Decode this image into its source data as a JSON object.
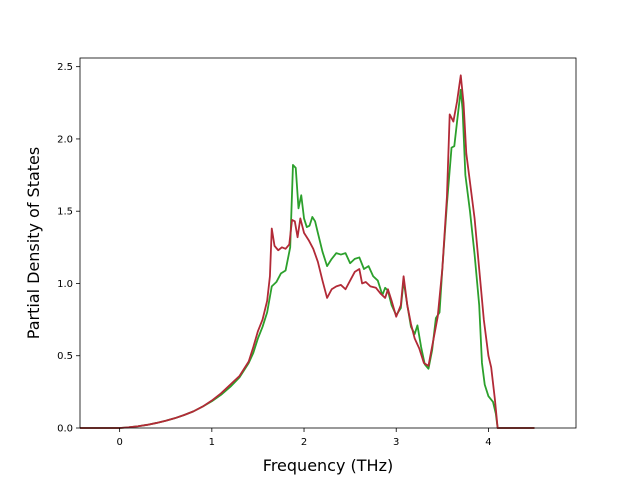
{
  "chart_data": {
    "type": "line",
    "title": "",
    "xlabel": "Frequency (THz)",
    "ylabel": "Partial Density of States",
    "xlim": [
      -0.43,
      4.95
    ],
    "ylim": [
      0.0,
      2.56
    ],
    "xticks": [
      0,
      1,
      2,
      3,
      4
    ],
    "xtick_labels": [
      "0",
      "1",
      "2",
      "3",
      "4"
    ],
    "yticks": [
      0.0,
      0.5,
      1.0,
      1.5,
      2.0,
      2.5
    ],
    "ytick_labels": [
      "0.0",
      "0.5",
      "1.0",
      "1.5",
      "2.0",
      "2.5"
    ],
    "grid": false,
    "legend": "none",
    "series": [
      {
        "color": "#2ca02c",
        "points": [
          [
            -0.43,
            0.0
          ],
          [
            0.0,
            0.0
          ],
          [
            0.1,
            0.005
          ],
          [
            0.2,
            0.012
          ],
          [
            0.3,
            0.022
          ],
          [
            0.4,
            0.035
          ],
          [
            0.5,
            0.05
          ],
          [
            0.6,
            0.068
          ],
          [
            0.7,
            0.09
          ],
          [
            0.8,
            0.115
          ],
          [
            0.9,
            0.148
          ],
          [
            1.0,
            0.185
          ],
          [
            1.1,
            0.23
          ],
          [
            1.2,
            0.285
          ],
          [
            1.3,
            0.35
          ],
          [
            1.4,
            0.45
          ],
          [
            1.45,
            0.52
          ],
          [
            1.5,
            0.62
          ],
          [
            1.55,
            0.7
          ],
          [
            1.6,
            0.8
          ],
          [
            1.65,
            0.98
          ],
          [
            1.7,
            1.01
          ],
          [
            1.75,
            1.07
          ],
          [
            1.8,
            1.09
          ],
          [
            1.85,
            1.25
          ],
          [
            1.88,
            1.82
          ],
          [
            1.91,
            1.8
          ],
          [
            1.94,
            1.52
          ],
          [
            1.97,
            1.61
          ],
          [
            2.0,
            1.45
          ],
          [
            2.03,
            1.39
          ],
          [
            2.06,
            1.4
          ],
          [
            2.09,
            1.46
          ],
          [
            2.12,
            1.43
          ],
          [
            2.15,
            1.35
          ],
          [
            2.2,
            1.22
          ],
          [
            2.25,
            1.12
          ],
          [
            2.3,
            1.17
          ],
          [
            2.35,
            1.21
          ],
          [
            2.4,
            1.2
          ],
          [
            2.45,
            1.21
          ],
          [
            2.5,
            1.14
          ],
          [
            2.55,
            1.17
          ],
          [
            2.6,
            1.18
          ],
          [
            2.65,
            1.1
          ],
          [
            2.7,
            1.12
          ],
          [
            2.75,
            1.05
          ],
          [
            2.8,
            1.02
          ],
          [
            2.85,
            0.92
          ],
          [
            2.88,
            0.97
          ],
          [
            2.91,
            0.95
          ],
          [
            2.95,
            0.85
          ],
          [
            3.0,
            0.78
          ],
          [
            3.05,
            0.83
          ],
          [
            3.08,
            1.02
          ],
          [
            3.12,
            0.85
          ],
          [
            3.16,
            0.7
          ],
          [
            3.2,
            0.65
          ],
          [
            3.23,
            0.71
          ],
          [
            3.27,
            0.56
          ],
          [
            3.31,
            0.44
          ],
          [
            3.35,
            0.41
          ],
          [
            3.39,
            0.54
          ],
          [
            3.43,
            0.76
          ],
          [
            3.47,
            0.8
          ],
          [
            3.5,
            1.1
          ],
          [
            3.55,
            1.55
          ],
          [
            3.6,
            1.94
          ],
          [
            3.63,
            1.95
          ],
          [
            3.66,
            2.12
          ],
          [
            3.7,
            2.34
          ],
          [
            3.72,
            2.2
          ],
          [
            3.75,
            1.75
          ],
          [
            3.8,
            1.5
          ],
          [
            3.85,
            1.2
          ],
          [
            3.9,
            0.85
          ],
          [
            3.93,
            0.45
          ],
          [
            3.96,
            0.3
          ],
          [
            4.0,
            0.22
          ],
          [
            4.05,
            0.18
          ],
          [
            4.08,
            0.1
          ],
          [
            4.1,
            0.0
          ],
          [
            4.5,
            0.0
          ]
        ]
      },
      {
        "color": "#b22a37",
        "points": [
          [
            -0.43,
            0.0
          ],
          [
            0.0,
            0.0
          ],
          [
            0.1,
            0.005
          ],
          [
            0.2,
            0.012
          ],
          [
            0.3,
            0.022
          ],
          [
            0.4,
            0.035
          ],
          [
            0.5,
            0.05
          ],
          [
            0.6,
            0.068
          ],
          [
            0.7,
            0.09
          ],
          [
            0.8,
            0.115
          ],
          [
            0.9,
            0.148
          ],
          [
            1.0,
            0.19
          ],
          [
            1.1,
            0.24
          ],
          [
            1.2,
            0.3
          ],
          [
            1.3,
            0.36
          ],
          [
            1.4,
            0.46
          ],
          [
            1.45,
            0.56
          ],
          [
            1.5,
            0.67
          ],
          [
            1.55,
            0.75
          ],
          [
            1.6,
            0.88
          ],
          [
            1.63,
            1.05
          ],
          [
            1.65,
            1.38
          ],
          [
            1.68,
            1.26
          ],
          [
            1.72,
            1.23
          ],
          [
            1.76,
            1.25
          ],
          [
            1.8,
            1.24
          ],
          [
            1.84,
            1.27
          ],
          [
            1.87,
            1.44
          ],
          [
            1.9,
            1.43
          ],
          [
            1.93,
            1.32
          ],
          [
            1.96,
            1.45
          ],
          [
            2.0,
            1.35
          ],
          [
            2.05,
            1.3
          ],
          [
            2.1,
            1.24
          ],
          [
            2.15,
            1.15
          ],
          [
            2.2,
            1.02
          ],
          [
            2.25,
            0.9
          ],
          [
            2.3,
            0.96
          ],
          [
            2.35,
            0.98
          ],
          [
            2.4,
            0.99
          ],
          [
            2.45,
            0.96
          ],
          [
            2.5,
            1.02
          ],
          [
            2.55,
            1.08
          ],
          [
            2.6,
            1.1
          ],
          [
            2.63,
            1.0
          ],
          [
            2.67,
            1.01
          ],
          [
            2.72,
            0.98
          ],
          [
            2.78,
            0.97
          ],
          [
            2.83,
            0.93
          ],
          [
            2.88,
            0.9
          ],
          [
            2.91,
            0.96
          ],
          [
            2.95,
            0.88
          ],
          [
            3.0,
            0.77
          ],
          [
            3.05,
            0.85
          ],
          [
            3.08,
            1.05
          ],
          [
            3.12,
            0.85
          ],
          [
            3.16,
            0.72
          ],
          [
            3.2,
            0.62
          ],
          [
            3.25,
            0.55
          ],
          [
            3.3,
            0.45
          ],
          [
            3.35,
            0.43
          ],
          [
            3.4,
            0.6
          ],
          [
            3.45,
            0.77
          ],
          [
            3.5,
            1.1
          ],
          [
            3.55,
            1.6
          ],
          [
            3.58,
            2.17
          ],
          [
            3.62,
            2.12
          ],
          [
            3.66,
            2.26
          ],
          [
            3.7,
            2.44
          ],
          [
            3.73,
            2.25
          ],
          [
            3.76,
            1.9
          ],
          [
            3.8,
            1.7
          ],
          [
            3.85,
            1.45
          ],
          [
            3.9,
            1.1
          ],
          [
            3.95,
            0.75
          ],
          [
            4.0,
            0.5
          ],
          [
            4.03,
            0.42
          ],
          [
            4.07,
            0.2
          ],
          [
            4.1,
            0.0
          ],
          [
            4.5,
            0.0
          ]
        ]
      }
    ]
  }
}
